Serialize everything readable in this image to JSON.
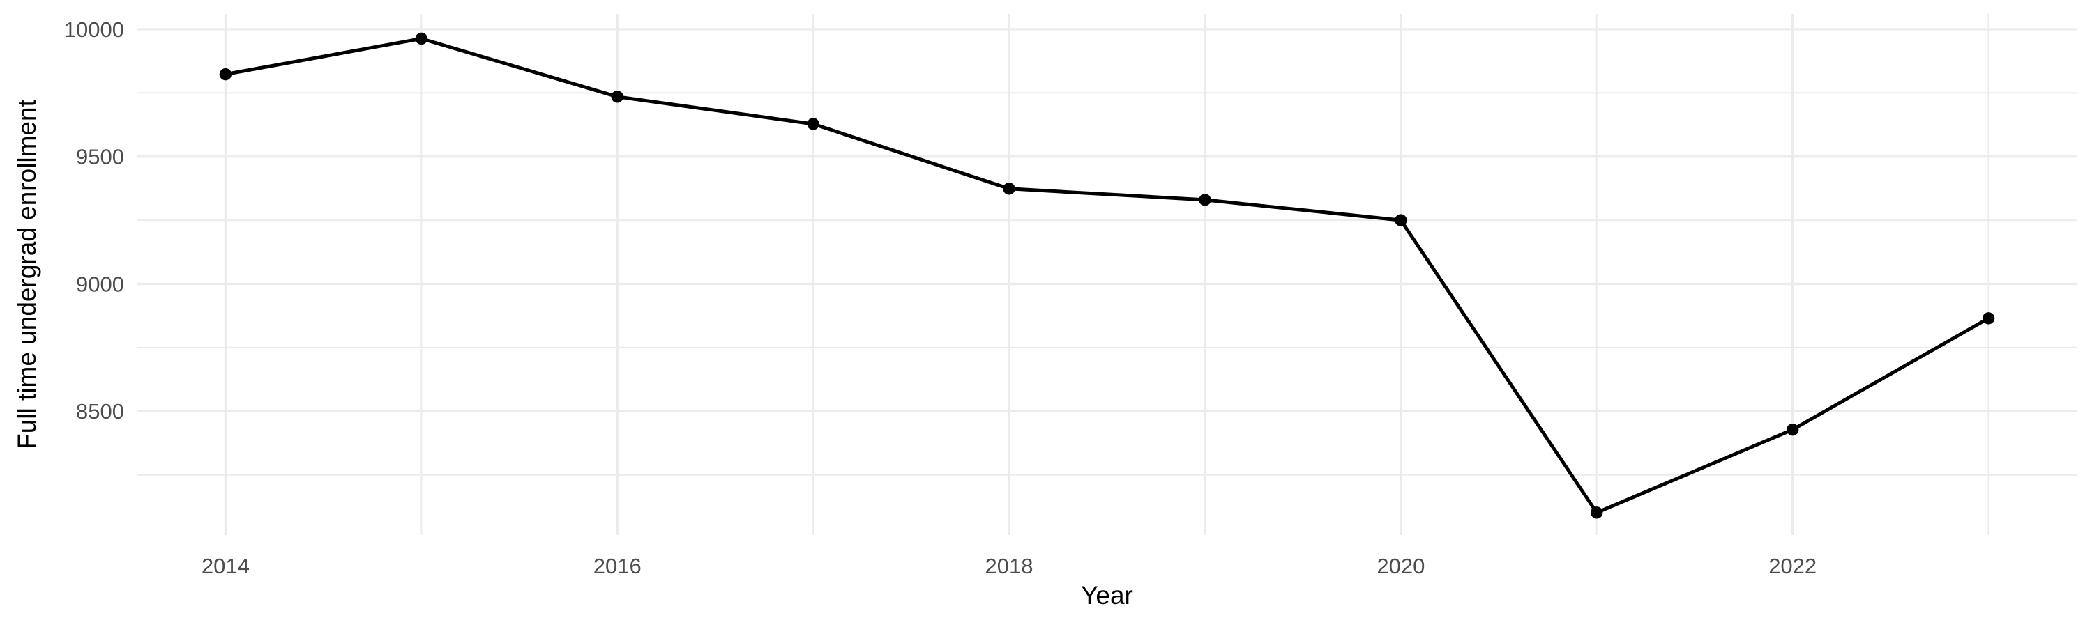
{
  "figure": {
    "background_color": "#FFFFFF",
    "description": "Line chart of full time undergraduate enrollment by year"
  },
  "chart_data": {
    "type": "line",
    "title": "",
    "xlabel": "Year",
    "ylabel": "Full time undergrad enrollment",
    "x": [
      2014,
      2015,
      2016,
      2017,
      2018,
      2019,
      2020,
      2021,
      2022,
      2023
    ],
    "series": [
      {
        "name": "Full time undergrad enrollment",
        "values": [
          9823,
          9963,
          9735,
          9628,
          9374,
          9330,
          9250,
          8102,
          8428,
          8865
        ]
      }
    ],
    "x_ticks": {
      "major": [
        2014,
        2016,
        2018,
        2020,
        2022
      ],
      "major_labels": [
        "2014",
        "2016",
        "2018",
        "2020",
        "2022"
      ],
      "minor": [
        2015,
        2017,
        2019,
        2021,
        2023
      ]
    },
    "y_ticks": {
      "major": [
        8500,
        9000,
        9500,
        10000
      ],
      "major_labels": [
        "8500",
        "9000",
        "9500",
        "10000"
      ],
      "minor": [
        8250,
        8750,
        9250,
        9750
      ]
    },
    "xlim": [
      2013.55,
      2023.45
    ],
    "ylim": [
      8014,
      10060
    ],
    "grid": true,
    "legend": "none",
    "style": {
      "line_color": "#000000",
      "point_color": "#000000",
      "grid_color": "#EBEBEB",
      "tick_label_color": "#4D4D4D",
      "axis_title_color": "#000000",
      "panel_background": "#FFFFFF"
    }
  }
}
